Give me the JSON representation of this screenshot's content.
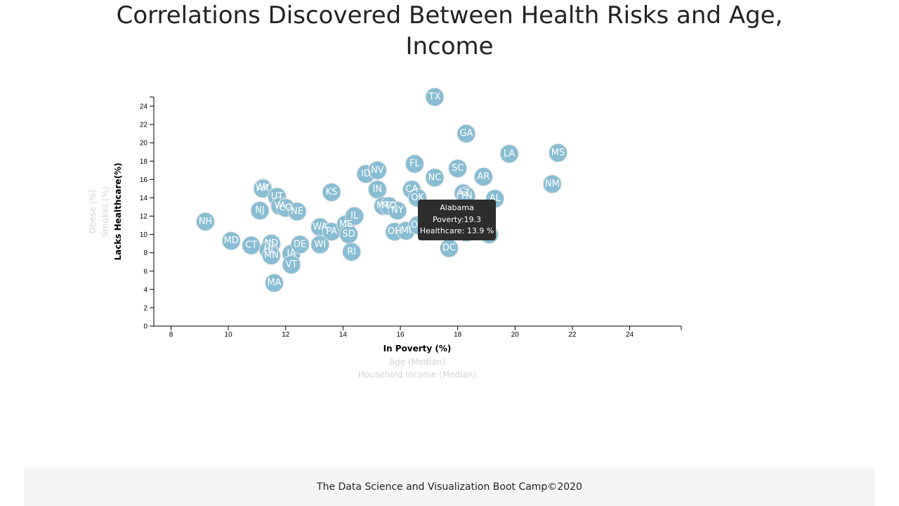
{
  "page": {
    "title": "Correlations Discovered Between Health Risks and Age, Income",
    "footer": "The Data Science and Visualization Boot Camp©2020"
  },
  "chart_data": {
    "type": "scatter",
    "title": "Correlations Discovered Between Health Risks and Age, Income",
    "x_axis_options": [
      "In Poverty (%)",
      "Age (Median)",
      "Household Income (Median)"
    ],
    "y_axis_options": [
      "Lacks Healthcare(%)",
      "Smokes (%)",
      "Obese (%)"
    ],
    "active_x": "In Poverty (%)",
    "active_y": "Lacks Healthcare(%)",
    "x_ticks": [
      8,
      10,
      12,
      14,
      16,
      18,
      20,
      22,
      24
    ],
    "y_ticks": [
      0,
      2,
      4,
      6,
      8,
      10,
      12,
      14,
      16,
      18,
      20,
      22,
      24
    ],
    "xlim": [
      7.4,
      25.8
    ],
    "ylim": [
      0,
      25
    ],
    "marker_color": "#89bdd3",
    "points": [
      {
        "state": "NH",
        "x": 9.2,
        "y": 11.4
      },
      {
        "state": "MD",
        "x": 10.1,
        "y": 9.3
      },
      {
        "state": "CT",
        "x": 10.8,
        "y": 8.8
      },
      {
        "state": "NJ",
        "x": 11.1,
        "y": 12.6
      },
      {
        "state": "WY",
        "x": 11.2,
        "y": 15.1
      },
      {
        "state": "AK",
        "x": 11.2,
        "y": 15.0
      },
      {
        "state": "UT",
        "x": 11.7,
        "y": 14.1
      },
      {
        "state": "VA",
        "x": 11.8,
        "y": 13.1
      },
      {
        "state": "CO",
        "x": 12.0,
        "y": 12.9
      },
      {
        "state": "NE",
        "x": 12.4,
        "y": 12.5
      },
      {
        "state": "ND",
        "x": 11.5,
        "y": 9.0
      },
      {
        "state": "HI",
        "x": 11.4,
        "y": 8.3
      },
      {
        "state": "MN",
        "x": 11.5,
        "y": 7.7
      },
      {
        "state": "IA",
        "x": 12.2,
        "y": 7.9
      },
      {
        "state": "DE",
        "x": 12.5,
        "y": 8.9
      },
      {
        "state": "VT",
        "x": 12.2,
        "y": 6.7
      },
      {
        "state": "MA",
        "x": 11.6,
        "y": 4.7
      },
      {
        "state": "WA",
        "x": 13.2,
        "y": 10.8
      },
      {
        "state": "WI",
        "x": 13.2,
        "y": 8.9
      },
      {
        "state": "PA",
        "x": 13.6,
        "y": 10.3
      },
      {
        "state": "KS",
        "x": 13.6,
        "y": 14.6
      },
      {
        "state": "ME",
        "x": 14.1,
        "y": 11.1
      },
      {
        "state": "SD",
        "x": 14.2,
        "y": 10.0
      },
      {
        "state": "IL",
        "x": 14.4,
        "y": 12.0
      },
      {
        "state": "RI",
        "x": 14.3,
        "y": 8.1
      },
      {
        "state": "ID",
        "x": 14.8,
        "y": 16.6
      },
      {
        "state": "NV",
        "x": 15.2,
        "y": 17.0
      },
      {
        "state": "IN",
        "x": 15.2,
        "y": 14.9
      },
      {
        "state": "MT",
        "x": 15.4,
        "y": 13.1
      },
      {
        "state": "MO",
        "x": 15.6,
        "y": 13.1
      },
      {
        "state": "NY",
        "x": 15.9,
        "y": 12.6
      },
      {
        "state": "OH",
        "x": 15.8,
        "y": 10.3
      },
      {
        "state": "MI",
        "x": 16.2,
        "y": 10.4
      },
      {
        "state": "OR",
        "x": 16.6,
        "y": 11.0
      },
      {
        "state": "CA",
        "x": 16.4,
        "y": 14.9
      },
      {
        "state": "OK",
        "x": 16.6,
        "y": 14.0
      },
      {
        "state": "FL",
        "x": 16.5,
        "y": 17.7
      },
      {
        "state": "NC",
        "x": 17.2,
        "y": 16.2
      },
      {
        "state": "TX",
        "x": 17.2,
        "y": 25.0
      },
      {
        "state": "DC",
        "x": 17.7,
        "y": 8.5
      },
      {
        "state": "SC",
        "x": 18.0,
        "y": 17.2
      },
      {
        "state": "AZ",
        "x": 18.2,
        "y": 14.5
      },
      {
        "state": "TN",
        "x": 18.3,
        "y": 14.2
      },
      {
        "state": "KY",
        "x": 18.3,
        "y": 10.2
      },
      {
        "state": "GA",
        "x": 18.3,
        "y": 21.0
      },
      {
        "state": "AR",
        "x": 18.9,
        "y": 16.3
      },
      {
        "state": "AL",
        "x": 19.3,
        "y": 13.9
      },
      {
        "state": "WV",
        "x": 19.1,
        "y": 10.0
      },
      {
        "state": "LA",
        "x": 19.8,
        "y": 18.8
      },
      {
        "state": "NM",
        "x": 21.3,
        "y": 15.5
      },
      {
        "state": "MS",
        "x": 21.5,
        "y": 18.9
      }
    ],
    "tooltip": {
      "state": "Alabama",
      "poverty": "Poverty:19.3",
      "healthcare": "Healthcare: 13.9 %"
    }
  }
}
